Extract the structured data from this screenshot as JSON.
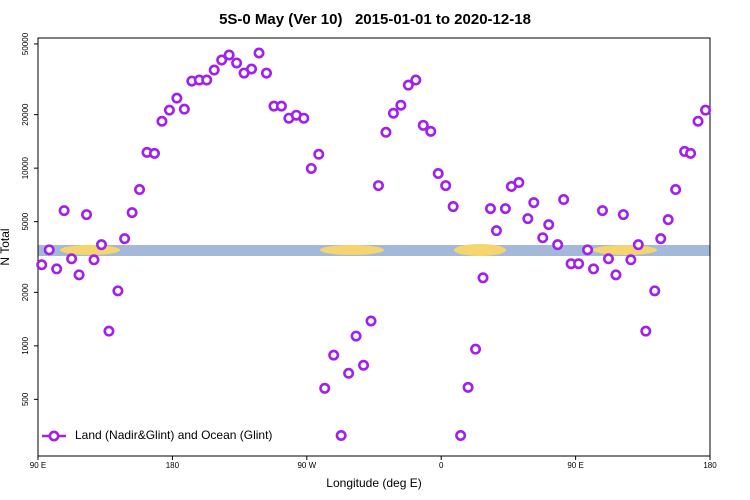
{
  "chart_data": {
    "type": "scatter",
    "title": "5S-0 May (Ver 10)   2015-01-01 to 2020-12-18",
    "xlabel": "Longitude (deg E)",
    "ylabel": "N Total",
    "yscale": "log",
    "legend": "lower left",
    "xlim": [
      90,
      540
    ],
    "xticks": [
      {
        "value": 90,
        "label": "90 E"
      },
      180,
      {
        "value": 270,
        "label": "90 W"
      },
      {
        "value": 360,
        "label": "0"
      },
      {
        "value": 450,
        "label": "90 E"
      },
      {
        "value": 540,
        "label": "180"
      }
    ],
    "ylim": [
      240,
      54000
    ],
    "yticks": [
      500,
      1000,
      2000,
      5000,
      10000,
      20000,
      50000
    ],
    "series": [
      {
        "name": "Land (Nadir&Glint) and Ocean (Glint)",
        "color": "#a020f0",
        "x": [
          92.5,
          97.5,
          102.5,
          107.5,
          112.5,
          117.5,
          122.5,
          127.5,
          132.5,
          137.5,
          143.5,
          148,
          153,
          158,
          163,
          168,
          173,
          178,
          183,
          188,
          193,
          198,
          203,
          208,
          213,
          218,
          223,
          228,
          233,
          238,
          243,
          248,
          253,
          258,
          263,
          268,
          273,
          278,
          282,
          288,
          293,
          298,
          303,
          308,
          313,
          318,
          323,
          328,
          333,
          338,
          343,
          348,
          353,
          358,
          363,
          368,
          373,
          378,
          383,
          388,
          393,
          397,
          403,
          407,
          412,
          418,
          422,
          428,
          432,
          438,
          442,
          447,
          452,
          458,
          462,
          468,
          472,
          477,
          482,
          487,
          492,
          497,
          503,
          507,
          512,
          517,
          523,
          527,
          532,
          537
        ],
        "values": [
          2860,
          3470,
          2710,
          5770,
          3090,
          2510,
          5480,
          3050,
          3710,
          1210,
          2040,
          4010,
          5620,
          7580,
          12270,
          12110,
          18360,
          21200,
          24770,
          21480,
          30900,
          31330,
          31330,
          35650,
          40600,
          43350,
          39080,
          34280,
          36140,
          44460,
          34280,
          22340,
          22340,
          19100,
          19860,
          19100,
          9960,
          11970,
          577,
          887,
          313,
          701,
          1135,
          778,
          1380,
          7980,
          15920,
          20370,
          22600,
          29310,
          31330,
          17420,
          16110,
          9330,
          7980,
          6080,
          313,
          584,
          958,
          2415,
          5920,
          4450,
          5920,
          7890,
          8300,
          5200,
          6400,
          4060,
          4810,
          3710,
          6660,
          2900,
          2900,
          3470,
          2710,
          5770,
          3090,
          2510,
          5480,
          3050,
          3710,
          1210,
          2040,
          4010,
          5130,
          7580,
          12420,
          12110,
          18360,
          21200
        ]
      }
    ]
  }
}
